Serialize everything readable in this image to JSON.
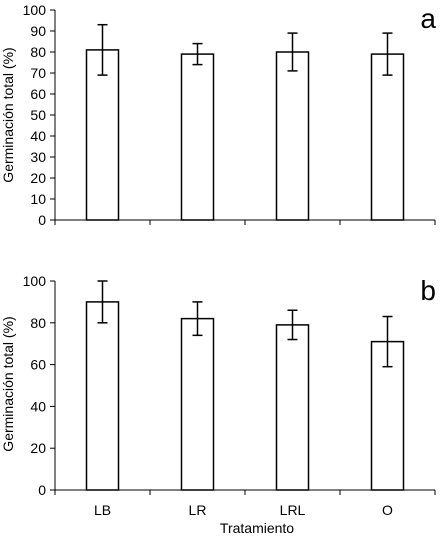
{
  "chart_data": [
    {
      "type": "bar",
      "panel_label": "a",
      "categories": [
        "LB",
        "LR",
        "LRL",
        "O"
      ],
      "values": [
        81,
        79,
        80,
        79
      ],
      "error_upper": [
        12,
        5,
        9,
        10
      ],
      "error_lower": [
        12,
        5,
        9,
        10
      ],
      "ylabel": "Germinación total (%)",
      "xlabel": "",
      "ylim": [
        0,
        100
      ],
      "yticks": [
        0,
        10,
        20,
        30,
        40,
        50,
        60,
        70,
        80,
        90,
        100
      ],
      "show_category_labels": false,
      "bar_fill": "#ffffff",
      "bar_stroke": "#000000",
      "grid": false
    },
    {
      "type": "bar",
      "panel_label": "b",
      "categories": [
        "LB",
        "LR",
        "LRL",
        "O"
      ],
      "values": [
        90,
        82,
        79,
        71
      ],
      "error_upper": [
        10,
        8,
        7,
        12
      ],
      "error_lower": [
        10,
        8,
        7,
        12
      ],
      "ylabel": "Germinación total (%)",
      "xlabel": "Tratamiento",
      "ylim": [
        0,
        100
      ],
      "yticks": [
        0,
        20,
        40,
        60,
        80,
        100
      ],
      "show_category_labels": true,
      "bar_fill": "#ffffff",
      "bar_stroke": "#000000",
      "grid": false
    }
  ]
}
